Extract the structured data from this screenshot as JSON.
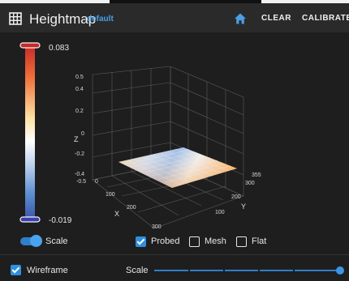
{
  "header": {
    "title": "Heightmap",
    "profile": "default",
    "clear_label": "CLEAR",
    "calibrate_label": "CALIBRATE",
    "accent": "#4a9fe6"
  },
  "colorbar": {
    "max_label": "0.083",
    "min_label": "-0.019",
    "colors_top_to_bottom": [
      "#c62828",
      "#ef6c3a",
      "#fbe3a4",
      "#ffffff",
      "#bfd3ee",
      "#5b8fd0",
      "#3a52a8"
    ]
  },
  "plot": {
    "z_ticks": [
      "0.5",
      "0.4",
      "0.2",
      "0",
      "-0.2",
      "-0.4",
      "-0.5"
    ],
    "x_ticks": [
      "0",
      "100",
      "200",
      "300"
    ],
    "y_ticks": [
      "355",
      "300",
      "200",
      "100"
    ],
    "z_label": "Z",
    "x_label": "X",
    "y_label": "Y"
  },
  "controls": {
    "scale_toggle_label": "Scale",
    "scale_toggle_on": true,
    "probed_label": "Probed",
    "probed_checked": true,
    "mesh_label": "Mesh",
    "mesh_checked": false,
    "flat_label": "Flat",
    "flat_checked": false
  },
  "bottom": {
    "wireframe_label": "Wireframe",
    "wireframe_checked": true,
    "scale_slider_label": "Scale",
    "scale_slider_value": 1.0
  }
}
